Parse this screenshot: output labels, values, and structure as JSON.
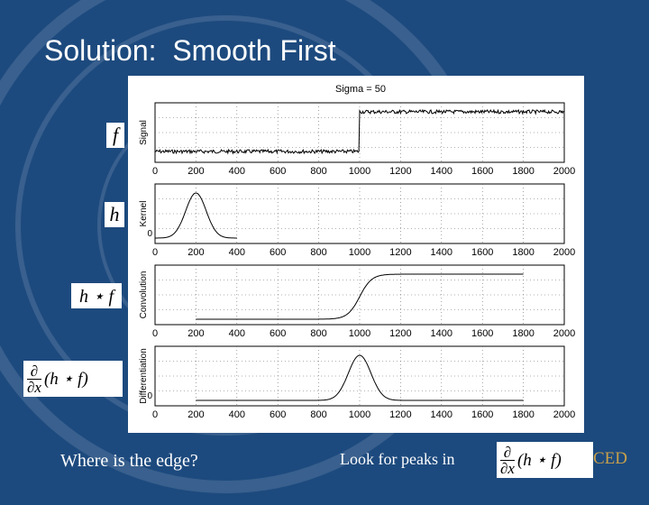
{
  "slide": {
    "title": "Solution:  Smooth First",
    "question": "Where is the edge?",
    "hint": "Look for peaks in",
    "watermark_fragment": "CED"
  },
  "labels": {
    "f": "f",
    "h": "h",
    "conv": "h ⋆ f",
    "deriv_num": "∂",
    "deriv_den": "∂x",
    "deriv_body": "(h ⋆ f)"
  },
  "figure": {
    "title": "Sigma = 50",
    "xticks": [
      "0",
      "200",
      "400",
      "600",
      "800",
      "1000",
      "1200",
      "1400",
      "1600",
      "1800",
      "2000"
    ],
    "panels": [
      {
        "ylabel": "Signal"
      },
      {
        "ylabel": "Kernel",
        "ytick": "0"
      },
      {
        "ylabel": "Convolution"
      },
      {
        "ylabel": "Differentiation",
        "ytick": "0"
      }
    ]
  },
  "colors": {
    "background": "#1d4a7e",
    "panel": "#ffffff",
    "text": "#ffffff"
  }
}
